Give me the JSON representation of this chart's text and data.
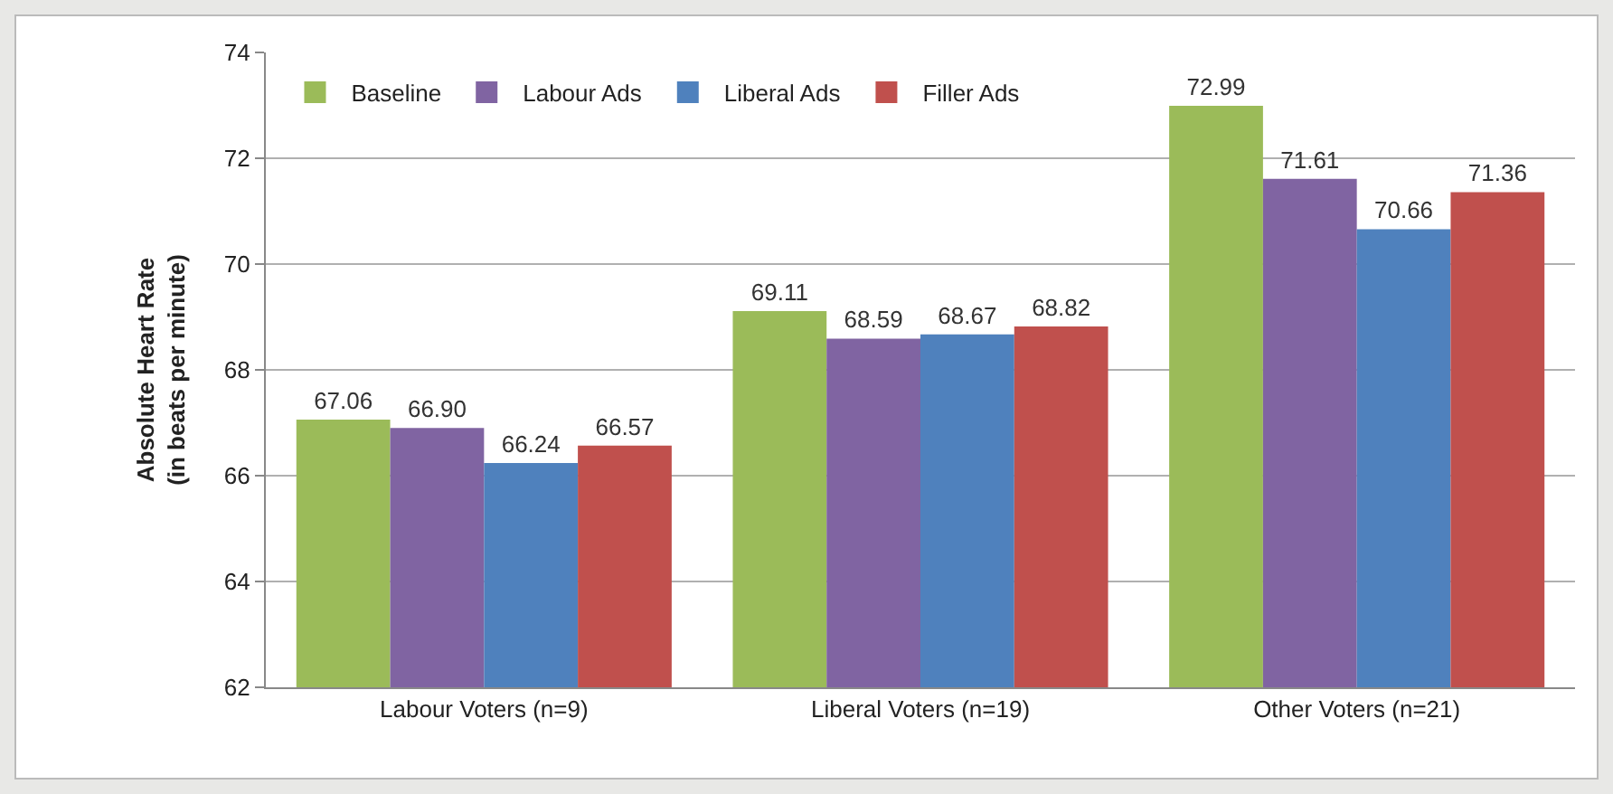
{
  "chart_data": {
    "type": "bar",
    "ylabel": "Absolute Heart Rate\n(in beats per minute)",
    "categories": [
      "Labour Voters (n=9)",
      "Liberal Voters (n=19)",
      "Other Voters (n=21)"
    ],
    "series": [
      {
        "name": "Baseline",
        "color": "#9bbb59",
        "values": [
          67.06,
          69.11,
          72.99
        ],
        "value_labels": [
          "67.06",
          "69.11",
          "72.99"
        ]
      },
      {
        "name": "Labour Ads",
        "color": "#8064a2",
        "values": [
          66.9,
          68.59,
          71.61
        ],
        "value_labels": [
          "66.90",
          "68.59",
          "71.61"
        ]
      },
      {
        "name": "Liberal Ads",
        "color": "#4f81bd",
        "values": [
          66.24,
          68.67,
          70.66
        ],
        "value_labels": [
          "66.24",
          "68.67",
          "70.66"
        ]
      },
      {
        "name": "Filler Ads",
        "color": "#c0504d",
        "values": [
          66.57,
          68.82,
          71.36
        ],
        "value_labels": [
          "66.57",
          "68.82",
          "71.36"
        ]
      }
    ],
    "ylim": [
      62,
      74
    ],
    "yticks": [
      62,
      64,
      66,
      68,
      70,
      72,
      74
    ],
    "grid": "y",
    "legend": "top left"
  }
}
